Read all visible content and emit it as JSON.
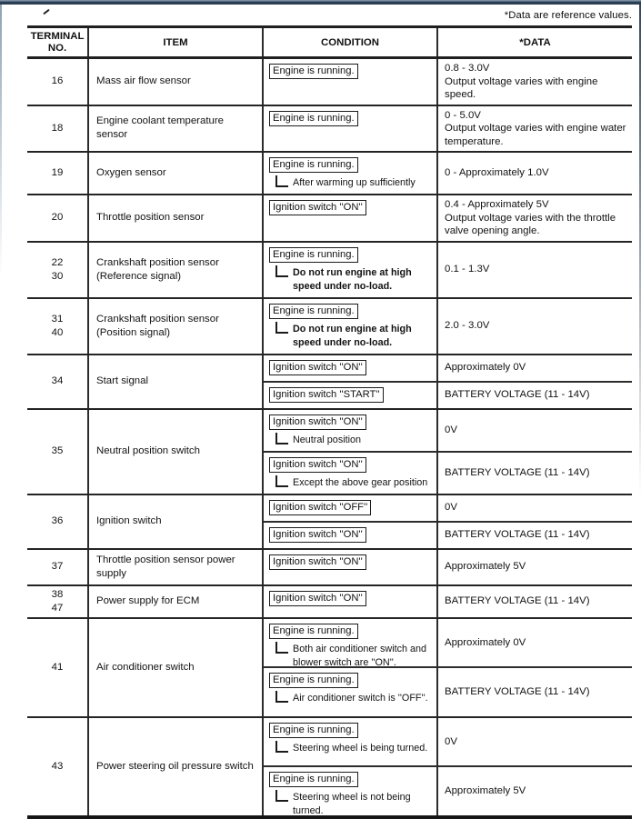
{
  "page": {
    "reference_note": "*Data are reference values."
  },
  "table": {
    "header": {
      "terminal_line1": "TERMINAL",
      "terminal_line2": "NO.",
      "item": "ITEM",
      "condition": "CONDITION",
      "data": "*DATA"
    },
    "rows": [
      {
        "terminals": [
          "16"
        ],
        "item": "Mass air flow sensor",
        "subs": [
          {
            "condition": "Engine is running.",
            "note": "",
            "note_bold": false,
            "data_lines": [
              "0.8 - 3.0V",
              "Output voltage varies with engine speed."
            ]
          }
        ]
      },
      {
        "terminals": [
          "18"
        ],
        "item": "Engine coolant temperature sensor",
        "subs": [
          {
            "condition": "Engine is running.",
            "note": "",
            "note_bold": false,
            "data_lines": [
              "0 - 5.0V",
              "Output voltage varies with engine water temperature."
            ]
          }
        ]
      },
      {
        "terminals": [
          "19"
        ],
        "item": "Oxygen sensor",
        "subs": [
          {
            "condition": "Engine is running.",
            "note": "After warming up sufficiently",
            "note_bold": false,
            "data_lines": [
              "0 - Approximately 1.0V"
            ]
          }
        ]
      },
      {
        "terminals": [
          "20"
        ],
        "item": "Throttle position sensor",
        "subs": [
          {
            "condition": "Ignition switch ''ON''",
            "note": "",
            "note_bold": false,
            "data_lines": [
              "0.4 - Approximately 5V",
              "Output voltage varies with the throttle valve opening angle."
            ]
          }
        ]
      },
      {
        "terminals": [
          "22",
          "30"
        ],
        "item": "Crankshaft position sensor (Reference signal)",
        "subs": [
          {
            "condition": "Engine is running.",
            "note": "Do not run engine at high speed under no-load.",
            "note_bold": true,
            "data_lines": [
              "0.1 - 1.3V"
            ]
          }
        ]
      },
      {
        "terminals": [
          "31",
          "40"
        ],
        "item": "Crankshaft position sensor (Position signal)",
        "subs": [
          {
            "condition": "Engine is running.",
            "note": "Do not run engine at high speed under no-load.",
            "note_bold": true,
            "data_lines": [
              "2.0 - 3.0V"
            ]
          }
        ]
      },
      {
        "terminals": [
          "34"
        ],
        "item": "Start signal",
        "subs": [
          {
            "condition": "Ignition switch ''ON''",
            "note": "",
            "note_bold": false,
            "data_lines": [
              "Approximately 0V"
            ]
          },
          {
            "condition": "Ignition switch ''START''",
            "note": "",
            "note_bold": false,
            "data_lines": [
              "BATTERY VOLTAGE (11 - 14V)"
            ]
          }
        ]
      },
      {
        "terminals": [
          "35"
        ],
        "item": "Neutral position switch",
        "subs": [
          {
            "condition": "Ignition switch ''ON''",
            "note": "Neutral position",
            "note_bold": false,
            "data_lines": [
              "0V"
            ]
          },
          {
            "condition": "Ignition switch ''ON''",
            "note": "Except the above gear position",
            "note_bold": false,
            "data_lines": [
              "BATTERY VOLTAGE (11 - 14V)"
            ]
          }
        ]
      },
      {
        "terminals": [
          "36"
        ],
        "item": "Ignition switch",
        "subs": [
          {
            "condition": "Ignition switch ''OFF''",
            "note": "",
            "note_bold": false,
            "data_lines": [
              "0V"
            ]
          },
          {
            "condition": "Ignition switch ''ON''",
            "note": "",
            "note_bold": false,
            "data_lines": [
              "BATTERY VOLTAGE (11 - 14V)"
            ]
          }
        ]
      },
      {
        "terminals": [
          "37"
        ],
        "item": "Throttle position sensor power supply",
        "subs": [
          {
            "condition": "Ignition switch ''ON''",
            "note": "",
            "note_bold": false,
            "data_lines": [
              "Approximately 5V"
            ]
          }
        ]
      },
      {
        "terminals": [
          "38",
          "47"
        ],
        "item": "Power supply for ECM",
        "subs": [
          {
            "condition": "Ignition switch ''ON''",
            "note": "",
            "note_bold": false,
            "data_lines": [
              "BATTERY VOLTAGE (11 - 14V)"
            ]
          }
        ]
      },
      {
        "terminals": [
          "41"
        ],
        "item": "Air conditioner switch",
        "subs": [
          {
            "condition": "Engine is running.",
            "note": "Both air conditioner switch and blower switch are ''ON''.",
            "note_bold": false,
            "data_lines": [
              "Approximately 0V"
            ]
          },
          {
            "condition": "Engine is running.",
            "note": "Air conditioner switch is ''OFF''.",
            "note_bold": false,
            "data_lines": [
              "BATTERY VOLTAGE (11 - 14V)"
            ]
          }
        ]
      },
      {
        "terminals": [
          "43"
        ],
        "item": "Power steering oil pressure switch",
        "subs": [
          {
            "condition": "Engine is running.",
            "note": "Steering wheel is being turned.",
            "note_bold": false,
            "data_lines": [
              "0V"
            ]
          },
          {
            "condition": "Engine is running.",
            "note": "Steering wheel is not being turned.",
            "note_bold": false,
            "data_lines": [
              "Approximately 5V"
            ]
          }
        ]
      }
    ]
  }
}
